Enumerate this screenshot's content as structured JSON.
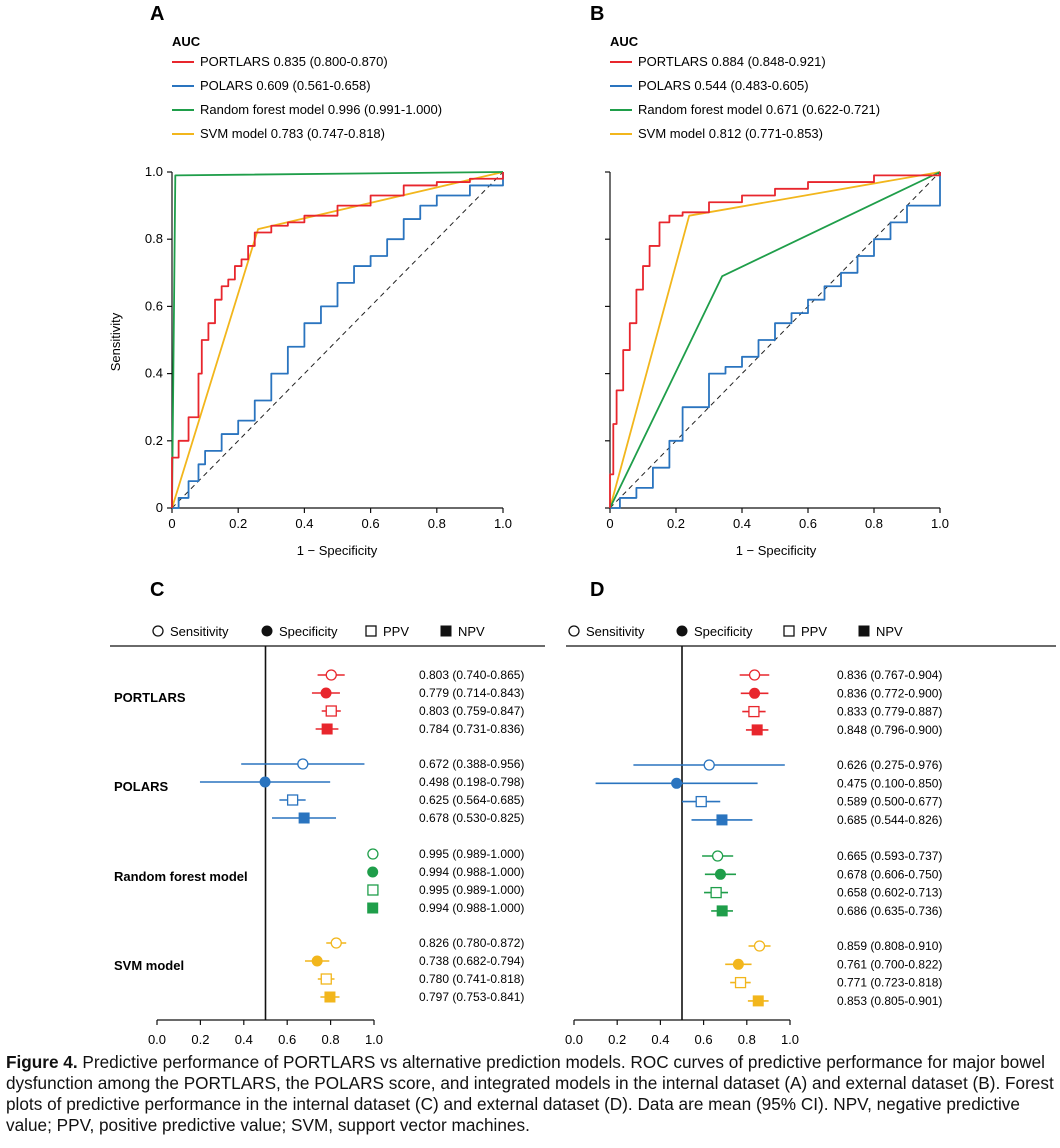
{
  "panels": {
    "A": {
      "letter": "A",
      "auc_title": "AUC",
      "xlabel": "1 − Specificity",
      "ylabel": "Sensitivity"
    },
    "B": {
      "letter": "B",
      "auc_title": "AUC",
      "xlabel": "1 − Specificity",
      "ylabel": ""
    },
    "C": {
      "letter": "C"
    },
    "D": {
      "letter": "D"
    }
  },
  "colors": {
    "PORTLARS": "#e8262d",
    "POLARS": "#2a74bf",
    "Random forest model": "#1f9e4a",
    "SVM model": "#f2b61c",
    "diagonal": "#222222"
  },
  "chart_data": [
    {
      "type": "line",
      "panel": "A",
      "title": "",
      "xlabel": "1 − Specificity",
      "ylabel": "Sensitivity",
      "xlim": [
        0,
        1
      ],
      "ylim": [
        0,
        1
      ],
      "xticks": [
        "0",
        "0.2",
        "0.4",
        "0.6",
        "0.8",
        "1.0"
      ],
      "yticks": [
        "0",
        "0.2",
        "0.4",
        "0.6",
        "0.8",
        "1.0"
      ],
      "legend_title": "AUC",
      "legend_position": "top-left",
      "series": [
        {
          "name": "PORTLARS",
          "legend": "PORTLARS 0.835 (0.800-0.870)",
          "step": true,
          "points": [
            [
              0,
              0
            ],
            [
              0,
              0.15
            ],
            [
              0.02,
              0.2
            ],
            [
              0.05,
              0.27
            ],
            [
              0.08,
              0.4
            ],
            [
              0.09,
              0.5
            ],
            [
              0.11,
              0.55
            ],
            [
              0.13,
              0.62
            ],
            [
              0.15,
              0.66
            ],
            [
              0.17,
              0.68
            ],
            [
              0.19,
              0.72
            ],
            [
              0.21,
              0.74
            ],
            [
              0.23,
              0.78
            ],
            [
              0.25,
              0.82
            ],
            [
              0.3,
              0.84
            ],
            [
              0.35,
              0.85
            ],
            [
              0.4,
              0.87
            ],
            [
              0.5,
              0.9
            ],
            [
              0.6,
              0.93
            ],
            [
              0.7,
              0.96
            ],
            [
              0.8,
              0.97
            ],
            [
              0.9,
              0.98
            ],
            [
              1,
              1
            ]
          ]
        },
        {
          "name": "POLARS",
          "legend": "POLARS 0.609 (0.561-0.658)",
          "step": true,
          "points": [
            [
              0,
              0
            ],
            [
              0.02,
              0.03
            ],
            [
              0.05,
              0.08
            ],
            [
              0.08,
              0.13
            ],
            [
              0.1,
              0.17
            ],
            [
              0.15,
              0.22
            ],
            [
              0.2,
              0.26
            ],
            [
              0.25,
              0.32
            ],
            [
              0.3,
              0.4
            ],
            [
              0.35,
              0.48
            ],
            [
              0.4,
              0.55
            ],
            [
              0.45,
              0.6
            ],
            [
              0.5,
              0.67
            ],
            [
              0.55,
              0.72
            ],
            [
              0.6,
              0.75
            ],
            [
              0.65,
              0.8
            ],
            [
              0.7,
              0.86
            ],
            [
              0.75,
              0.9
            ],
            [
              0.8,
              0.93
            ],
            [
              0.9,
              0.96
            ],
            [
              1,
              1
            ]
          ]
        },
        {
          "name": "Random forest model",
          "legend": "Random forest model 0.996 (0.991-1.000)",
          "step": false,
          "points": [
            [
              0,
              0
            ],
            [
              0.01,
              0.99
            ],
            [
              1,
              1
            ]
          ]
        },
        {
          "name": "SVM model",
          "legend": "SVM model 0.783 (0.747-0.818)",
          "step": false,
          "points": [
            [
              0,
              0
            ],
            [
              0.26,
              0.83
            ],
            [
              1,
              1
            ]
          ]
        }
      ],
      "reference_line": [
        [
          0,
          0
        ],
        [
          1,
          1
        ]
      ]
    },
    {
      "type": "line",
      "panel": "B",
      "title": "",
      "xlabel": "1 − Specificity",
      "ylabel": "",
      "xlim": [
        0,
        1
      ],
      "ylim": [
        0,
        1
      ],
      "xticks": [
        "0",
        "0.2",
        "0.4",
        "0.6",
        "0.8",
        "1.0"
      ],
      "yticks": [],
      "legend_title": "AUC",
      "legend_position": "top-left",
      "series": [
        {
          "name": "PORTLARS",
          "legend": "PORTLARS 0.884 (0.848-0.921)",
          "step": true,
          "points": [
            [
              0,
              0
            ],
            [
              0,
              0.1
            ],
            [
              0.01,
              0.25
            ],
            [
              0.02,
              0.35
            ],
            [
              0.04,
              0.47
            ],
            [
              0.06,
              0.55
            ],
            [
              0.08,
              0.65
            ],
            [
              0.1,
              0.72
            ],
            [
              0.12,
              0.78
            ],
            [
              0.15,
              0.85
            ],
            [
              0.18,
              0.87
            ],
            [
              0.22,
              0.88
            ],
            [
              0.3,
              0.91
            ],
            [
              0.4,
              0.93
            ],
            [
              0.5,
              0.95
            ],
            [
              0.6,
              0.97
            ],
            [
              0.8,
              0.99
            ],
            [
              1,
              1
            ]
          ]
        },
        {
          "name": "POLARS",
          "legend": "POLARS 0.544 (0.483-0.605)",
          "step": true,
          "points": [
            [
              0,
              0
            ],
            [
              0.03,
              0.03
            ],
            [
              0.08,
              0.06
            ],
            [
              0.13,
              0.12
            ],
            [
              0.18,
              0.2
            ],
            [
              0.22,
              0.3
            ],
            [
              0.3,
              0.4
            ],
            [
              0.35,
              0.42
            ],
            [
              0.4,
              0.45
            ],
            [
              0.45,
              0.5
            ],
            [
              0.5,
              0.55
            ],
            [
              0.55,
              0.58
            ],
            [
              0.6,
              0.62
            ],
            [
              0.65,
              0.66
            ],
            [
              0.7,
              0.7
            ],
            [
              0.75,
              0.75
            ],
            [
              0.8,
              0.8
            ],
            [
              0.85,
              0.85
            ],
            [
              0.9,
              0.9
            ],
            [
              1,
              1
            ]
          ]
        },
        {
          "name": "Random forest model",
          "legend": "Random forest model 0.671 (0.622-0.721)",
          "step": false,
          "points": [
            [
              0,
              0
            ],
            [
              0.34,
              0.69
            ],
            [
              1,
              1
            ]
          ]
        },
        {
          "name": "SVM model",
          "legend": "SVM model 0.812 (0.771-0.853)",
          "step": false,
          "points": [
            [
              0,
              0
            ],
            [
              0.24,
              0.87
            ],
            [
              1,
              1
            ]
          ]
        }
      ],
      "reference_line": [
        [
          0,
          0
        ],
        [
          1,
          1
        ]
      ]
    },
    {
      "type": "forest",
      "panel": "C",
      "xlim": [
        0,
        1
      ],
      "xticks": [
        "0.0",
        "0.2",
        "0.4",
        "0.6",
        "0.8",
        "1.0"
      ],
      "reference_x": 0.5,
      "legend": [
        "Sensitivity",
        "Specificity",
        "PPV",
        "NPV"
      ],
      "groups": [
        {
          "name": "PORTLARS",
          "rows": [
            {
              "metric": "Sensitivity",
              "mean": 0.803,
              "lo": 0.74,
              "hi": 0.865,
              "label": "0.803 (0.740-0.865)"
            },
            {
              "metric": "Specificity",
              "mean": 0.779,
              "lo": 0.714,
              "hi": 0.843,
              "label": "0.779 (0.714-0.843)"
            },
            {
              "metric": "PPV",
              "mean": 0.803,
              "lo": 0.759,
              "hi": 0.847,
              "label": "0.803 (0.759-0.847)"
            },
            {
              "metric": "NPV",
              "mean": 0.784,
              "lo": 0.731,
              "hi": 0.836,
              "label": "0.784 (0.731-0.836)"
            }
          ]
        },
        {
          "name": "POLARS",
          "rows": [
            {
              "metric": "Sensitivity",
              "mean": 0.672,
              "lo": 0.388,
              "hi": 0.956,
              "label": "0.672 (0.388-0.956)"
            },
            {
              "metric": "Specificity",
              "mean": 0.498,
              "lo": 0.198,
              "hi": 0.798,
              "label": "0.498 (0.198-0.798)"
            },
            {
              "metric": "PPV",
              "mean": 0.625,
              "lo": 0.564,
              "hi": 0.685,
              "label": "0.625 (0.564-0.685)"
            },
            {
              "metric": "NPV",
              "mean": 0.678,
              "lo": 0.53,
              "hi": 0.825,
              "label": "0.678 (0.530-0.825)"
            }
          ]
        },
        {
          "name": "Random forest model",
          "rows": [
            {
              "metric": "Sensitivity",
              "mean": 0.995,
              "lo": 0.989,
              "hi": 1.0,
              "label": "0.995 (0.989-1.000)"
            },
            {
              "metric": "Specificity",
              "mean": 0.994,
              "lo": 0.988,
              "hi": 1.0,
              "label": "0.994 (0.988-1.000)"
            },
            {
              "metric": "PPV",
              "mean": 0.995,
              "lo": 0.989,
              "hi": 1.0,
              "label": "0.995 (0.989-1.000)"
            },
            {
              "metric": "NPV",
              "mean": 0.994,
              "lo": 0.988,
              "hi": 1.0,
              "label": "0.994 (0.988-1.000)"
            }
          ]
        },
        {
          "name": "SVM model",
          "rows": [
            {
              "metric": "Sensitivity",
              "mean": 0.826,
              "lo": 0.78,
              "hi": 0.872,
              "label": "0.826 (0.780-0.872)"
            },
            {
              "metric": "Specificity",
              "mean": 0.738,
              "lo": 0.682,
              "hi": 0.794,
              "label": "0.738 (0.682-0.794)"
            },
            {
              "metric": "PPV",
              "mean": 0.78,
              "lo": 0.741,
              "hi": 0.818,
              "label": "0.780 (0.741-0.818)"
            },
            {
              "metric": "NPV",
              "mean": 0.797,
              "lo": 0.753,
              "hi": 0.841,
              "label": "0.797 (0.753-0.841)"
            }
          ]
        }
      ]
    },
    {
      "type": "forest",
      "panel": "D",
      "xlim": [
        0,
        1
      ],
      "xticks": [
        "0.0",
        "0.2",
        "0.4",
        "0.6",
        "0.8",
        "1.0"
      ],
      "reference_x": 0.5,
      "legend": [
        "Sensitivity",
        "Specificity",
        "PPV",
        "NPV"
      ],
      "groups": [
        {
          "name": "PORTLARS",
          "rows": [
            {
              "metric": "Sensitivity",
              "mean": 0.836,
              "lo": 0.767,
              "hi": 0.904,
              "label": "0.836 (0.767-0.904)"
            },
            {
              "metric": "Specificity",
              "mean": 0.836,
              "lo": 0.772,
              "hi": 0.9,
              "label": "0.836 (0.772-0.900)"
            },
            {
              "metric": "PPV",
              "mean": 0.833,
              "lo": 0.779,
              "hi": 0.887,
              "label": "0.833 (0.779-0.887)"
            },
            {
              "metric": "NPV",
              "mean": 0.848,
              "lo": 0.796,
              "hi": 0.9,
              "label": "0.848 (0.796-0.900)"
            }
          ]
        },
        {
          "name": "POLARS",
          "rows": [
            {
              "metric": "Sensitivity",
              "mean": 0.626,
              "lo": 0.275,
              "hi": 0.976,
              "label": "0.626 (0.275-0.976)"
            },
            {
              "metric": "Specificity",
              "mean": 0.475,
              "lo": 0.1,
              "hi": 0.85,
              "label": "0.475 (0.100-0.850)"
            },
            {
              "metric": "PPV",
              "mean": 0.589,
              "lo": 0.5,
              "hi": 0.677,
              "label": "0.589 (0.500-0.677)"
            },
            {
              "metric": "NPV",
              "mean": 0.685,
              "lo": 0.544,
              "hi": 0.826,
              "label": "0.685 (0.544-0.826)"
            }
          ]
        },
        {
          "name": "Random forest model",
          "rows": [
            {
              "metric": "Sensitivity",
              "mean": 0.665,
              "lo": 0.593,
              "hi": 0.737,
              "label": "0.665 (0.593-0.737)"
            },
            {
              "metric": "Specificity",
              "mean": 0.678,
              "lo": 0.606,
              "hi": 0.75,
              "label": "0.678 (0.606-0.750)"
            },
            {
              "metric": "PPV",
              "mean": 0.658,
              "lo": 0.602,
              "hi": 0.713,
              "label": "0.658 (0.602-0.713)"
            },
            {
              "metric": "NPV",
              "mean": 0.686,
              "lo": 0.635,
              "hi": 0.736,
              "label": "0.686 (0.635-0.736)"
            }
          ]
        },
        {
          "name": "SVM model",
          "rows": [
            {
              "metric": "Sensitivity",
              "mean": 0.859,
              "lo": 0.808,
              "hi": 0.91,
              "label": "0.859 (0.808-0.910)"
            },
            {
              "metric": "Specificity",
              "mean": 0.761,
              "lo": 0.7,
              "hi": 0.822,
              "label": "0.761 (0.700-0.822)"
            },
            {
              "metric": "PPV",
              "mean": 0.771,
              "lo": 0.723,
              "hi": 0.818,
              "label": "0.771 (0.723-0.818)"
            },
            {
              "metric": "NPV",
              "mean": 0.853,
              "lo": 0.805,
              "hi": 0.901,
              "label": "0.853 (0.805-0.901)"
            }
          ]
        }
      ]
    }
  ],
  "caption": {
    "label": "Figure 4.",
    "text": " Predictive performance of PORTLARS vs alternative prediction models. ROC curves of predictive performance for major bowel dysfunction among the PORTLARS, the POLARS score, and integrated models in the internal dataset (A) and external dataset (B). Forest plots of predictive performance in the internal dataset (C) and external dataset (D). Data are mean (95% CI). NPV, negative predictive value; PPV, positive predictive value; SVM, support vector machines."
  }
}
